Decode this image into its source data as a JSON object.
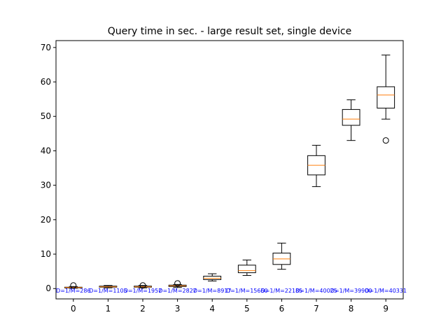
{
  "chart_data": {
    "type": "box",
    "title": "Query time in sec. - large result set, single device",
    "xlabel": "",
    "ylabel": "",
    "ylim": [
      -3,
      72
    ],
    "yticks": [
      0,
      10,
      20,
      30,
      40,
      50,
      60,
      70
    ],
    "categories": [
      "0",
      "1",
      "2",
      "3",
      "4",
      "5",
      "6",
      "7",
      "8",
      "9"
    ],
    "boxes": [
      {
        "category": "0",
        "whislo": 0.1,
        "q1": 0.2,
        "median": 0.3,
        "q3": 0.4,
        "whishi": 0.6,
        "fliers": [
          0.9
        ]
      },
      {
        "category": "1",
        "whislo": 0.2,
        "q1": 0.4,
        "median": 0.5,
        "q3": 0.7,
        "whishi": 0.9,
        "fliers": []
      },
      {
        "category": "2",
        "whislo": 0.2,
        "q1": 0.4,
        "median": 0.5,
        "q3": 0.7,
        "whishi": 0.9,
        "fliers": [
          0.9
        ]
      },
      {
        "category": "3",
        "whislo": 0.3,
        "q1": 0.6,
        "median": 0.8,
        "q3": 1.0,
        "whishi": 1.2,
        "fliers": [
          1.5
        ]
      },
      {
        "category": "4",
        "whislo": 2.2,
        "q1": 2.6,
        "median": 3.0,
        "q3": 3.6,
        "whishi": 4.3,
        "fliers": []
      },
      {
        "category": "5",
        "whislo": 3.8,
        "q1": 4.6,
        "median": 5.2,
        "q3": 6.8,
        "whishi": 8.3,
        "fliers": []
      },
      {
        "category": "6",
        "whislo": 5.6,
        "q1": 7.0,
        "median": 8.6,
        "q3": 10.3,
        "whishi": 13.2,
        "fliers": []
      },
      {
        "category": "7",
        "whislo": 29.6,
        "q1": 33.0,
        "median": 35.8,
        "q3": 38.6,
        "whishi": 41.6,
        "fliers": []
      },
      {
        "category": "8",
        "whislo": 43.0,
        "q1": 47.4,
        "median": 49.2,
        "q3": 52.0,
        "whishi": 54.8,
        "fliers": []
      },
      {
        "category": "9",
        "whislo": 49.2,
        "q1": 52.4,
        "median": 56.2,
        "q3": 58.6,
        "whishi": 67.8,
        "fliers": [
          43.0
        ]
      }
    ],
    "annotations": [
      "D=1/M=286",
      "D=1/M=1105",
      "D=1/M=1957",
      "D=1/M=2827",
      "D=1/M=8917",
      "D=1/M=15660",
      "D=1/M=22185",
      "D=1/M=40025",
      "D=1/M=39900",
      "D=1/M=40331"
    ],
    "annotation_y": -0.6,
    "colors": {
      "box": "#000000",
      "median": "#ff7f0e",
      "annotation": "#0000ff",
      "axes": "#000000",
      "background": "#ffffff"
    },
    "grid": false,
    "legend": "none"
  }
}
